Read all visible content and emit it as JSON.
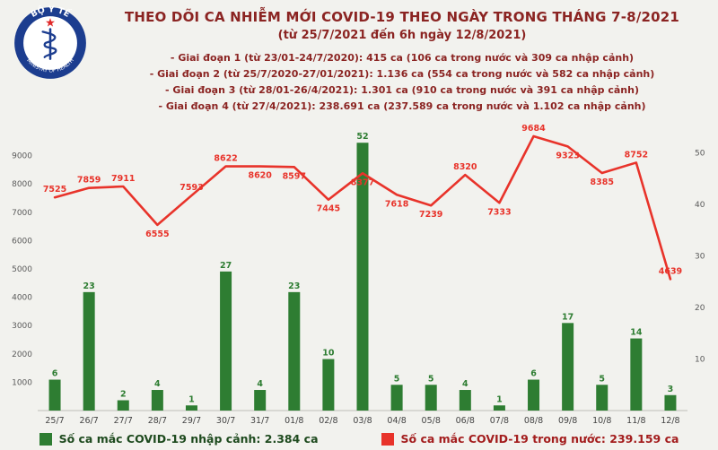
{
  "logo": {
    "name": "BỘ Y TẾ",
    "subtitle": "MINISTRY OF HEALTH"
  },
  "header": {
    "title_line1": "THEO DÕI CA NHIỄM MỚI COVID-19 THEO NGÀY TRONG THÁNG 7-8/2021",
    "title_line2": "(từ 25/7/2021 đến 6h ngày 12/8/2021)",
    "bullets": [
      "- Giai đoạn 1 (từ 23/01-24/7/2020): 415 ca (106 ca trong nước và 309 ca nhập cảnh)",
      "- Giai đoạn 2 (từ 25/7/2020-27/01/2021): 1.136 ca (554 ca trong nước và 582 ca nhập cảnh)",
      "- Giai đoạn 3 (từ 28/01-26/4/2021): 1.301 ca (910 ca trong nước và 391 ca nhập cảnh)",
      "- Giai đoạn 4 (từ 27/4/2021): 238.691 ca (237.589 ca trong nước và 1.102 ca nhập cảnh)"
    ]
  },
  "chart_data": {
    "type": "bar",
    "note": "dual-axis combo: green bars (right axis) + red line (left axis)",
    "categories": [
      "25/7",
      "26/7",
      "27/7",
      "28/7",
      "29/7",
      "30/7",
      "31/7",
      "01/8",
      "02/8",
      "03/8",
      "04/8",
      "05/8",
      "06/8",
      "07/8",
      "08/8",
      "09/8",
      "10/8",
      "11/8",
      "12/8"
    ],
    "series": [
      {
        "name": "Số ca mắc COVID-19 nhập cảnh",
        "type": "bar",
        "axis": "right",
        "color": "#2e7d32",
        "values": [
          6,
          23,
          2,
          4,
          1,
          27,
          4,
          23,
          10,
          52,
          5,
          5,
          4,
          1,
          6,
          17,
          5,
          14,
          3
        ]
      },
      {
        "name": "Số ca mắc COVID-19 trong nước",
        "type": "line",
        "axis": "left",
        "color": "#e8332a",
        "values": [
          7525,
          7859,
          7911,
          6555,
          7593,
          8622,
          8620,
          8597,
          7445,
          8377,
          7618,
          7239,
          8320,
          7333,
          9684,
          9323,
          8385,
          8752,
          4639
        ]
      }
    ],
    "line_label_sides": [
      "above",
      "above",
      "above",
      "below",
      "above",
      "above",
      "below",
      "below",
      "below",
      "below",
      "below",
      "below",
      "above",
      "below",
      "above",
      "below",
      "below",
      "above",
      "above"
    ],
    "left_axis": {
      "min": 0,
      "max": 10000,
      "ticks": [
        1000,
        2000,
        3000,
        4000,
        5000,
        6000,
        7000,
        8000,
        9000
      ]
    },
    "right_axis": {
      "min": 0,
      "max": 55,
      "ticks": [
        10,
        20,
        30,
        40,
        50
      ]
    },
    "grid": "off",
    "legend_position": "bottom",
    "legend": [
      {
        "label": "Số ca mắc COVID-19 nhập cảnh: 2.384 ca",
        "color": "#2e7d32",
        "text_color": "#1e4a1e"
      },
      {
        "label": "Số ca mắc COVID-19 trong nước: 239.159 ca",
        "color": "#e8332a",
        "text_color": "#a31d1d"
      }
    ]
  }
}
